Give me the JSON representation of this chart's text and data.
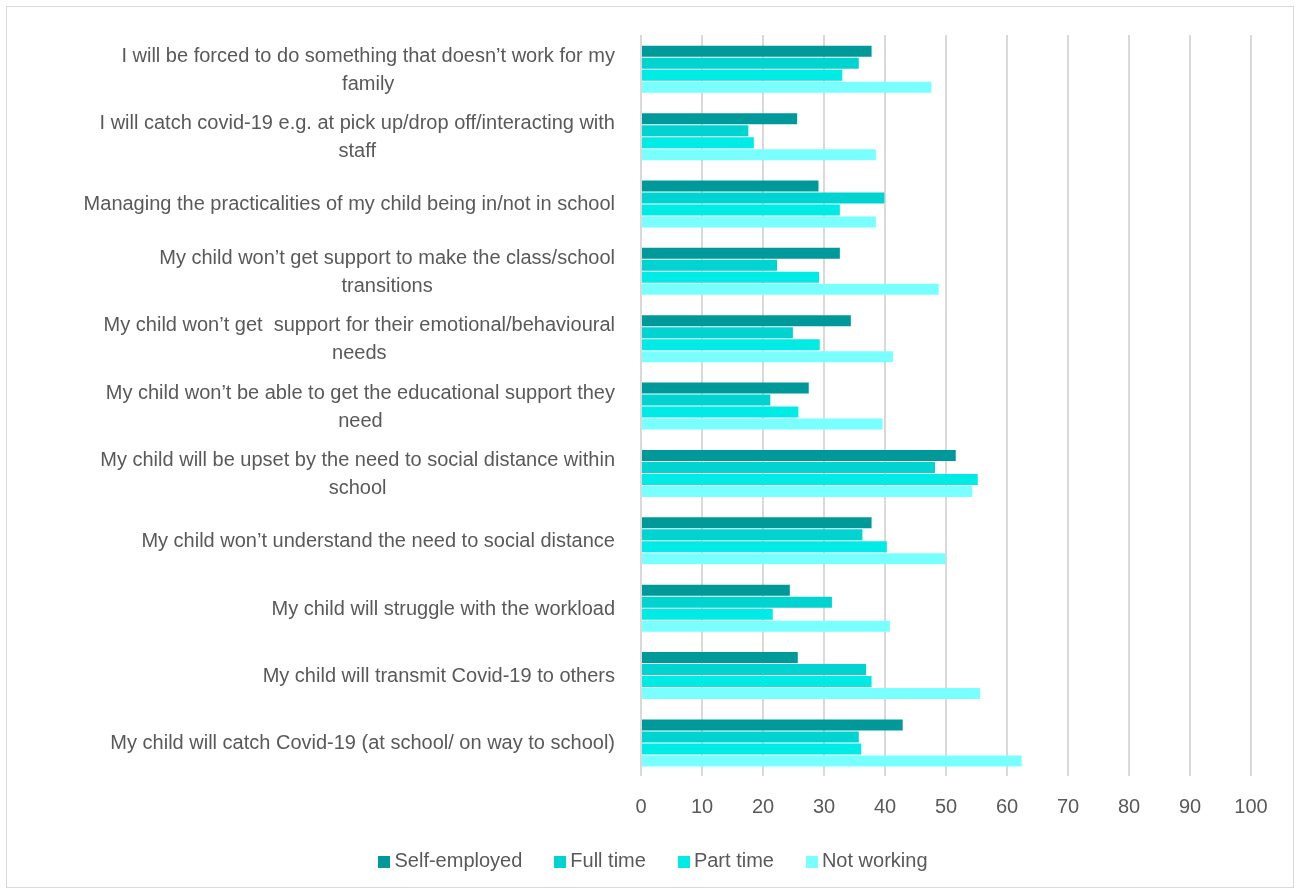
{
  "chart_data": {
    "type": "bar",
    "orientation": "horizontal",
    "categories": [
      "I will be forced to do something that doesn’t work for my family",
      "I will catch covid-19 e.g. at pick up/drop off/interacting with staff",
      "Managing the practicalities of my child being in/not in school",
      "My child won’t get support to make the class/school transitions",
      "My child won’t get  support for their emotional/behavioural needs",
      "My child won’t be able to get the educational support they need",
      "My child will be upset by the need to social distance within school",
      "My child won’t understand the need to social distance",
      "My child will struggle with the workload",
      "My child will transmit Covid-19 to others",
      "My child will catch Covid-19 (at school/ on way to school)"
    ],
    "series": [
      {
        "name": "Self-employed",
        "color": "#009999",
        "values": [
          37.8,
          25.6,
          29.1,
          32.6,
          34.4,
          27.5,
          51.6,
          37.8,
          24.4,
          25.7,
          42.9
        ]
      },
      {
        "name": "Full time",
        "color": "#00d3d0",
        "values": [
          35.7,
          17.6,
          39.9,
          22.3,
          24.9,
          21.2,
          48.2,
          36.3,
          31.3,
          36.9,
          35.7
        ]
      },
      {
        "name": "Part time",
        "color": "#00ebe5",
        "values": [
          33.0,
          18.5,
          32.6,
          29.2,
          29.3,
          25.8,
          55.2,
          40.3,
          21.6,
          37.8,
          36.1
        ]
      },
      {
        "name": "Not working",
        "color": "#79ffff",
        "values": [
          47.6,
          38.5,
          38.5,
          48.8,
          41.3,
          39.6,
          54.3,
          49.9,
          40.8,
          55.6,
          62.4
        ]
      }
    ],
    "xlim": [
      0,
      100
    ],
    "xticks": [
      0,
      10,
      20,
      30,
      40,
      50,
      60,
      70,
      80,
      90,
      100
    ],
    "grid": "x",
    "legend": "bottom"
  }
}
